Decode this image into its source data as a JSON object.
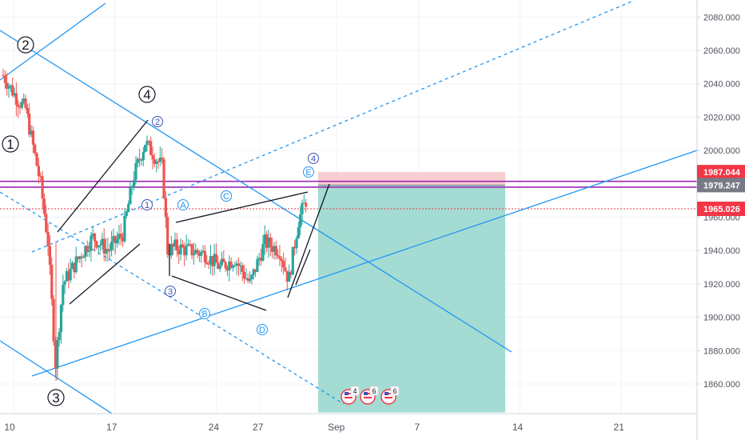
{
  "chart_data": {
    "type": "candlestick",
    "instrument_type": "price chart",
    "x_ticks": [
      "10",
      "17",
      "24",
      "27",
      "Sep",
      "7",
      "14",
      "21"
    ],
    "y_ticks": [
      "1860.000",
      "1880.000",
      "1900.000",
      "1920.000",
      "1940.000",
      "1960.000",
      "1980.000",
      "2000.000",
      "2020.000",
      "2040.000",
      "2060.000",
      "2080.000"
    ],
    "ylim": [
      1842,
      2088
    ],
    "price_tags": [
      {
        "label": "1987.044",
        "value": 1987.044,
        "color": "#f23645"
      },
      {
        "label": "1979.247",
        "value": 1979.247,
        "color": "#787b86"
      },
      {
        "label": "1965.026",
        "value": 1965.026,
        "color": "#f23645"
      }
    ],
    "horizontal_levels": [
      {
        "value": 1981.5,
        "color": "#9c27b0"
      },
      {
        "value": 1978.0,
        "color": "#9c27b0"
      },
      {
        "value": 1965.026,
        "color": "#f23645",
        "style": "dotted"
      }
    ],
    "position": {
      "type": "short",
      "stop": 1987.044,
      "entry": 1979.247,
      "target": 1843,
      "stop_color": "#f7c6c9",
      "target_color": "#9fd9d1"
    },
    "wave_labels_major": [
      "1",
      "2",
      "3",
      "4"
    ],
    "wave_labels_minor": [
      "1",
      "2",
      "3",
      "4"
    ],
    "wave_labels_abc": [
      "A",
      "B",
      "C",
      "D",
      "E"
    ],
    "event_flags": [
      "4",
      "6",
      "6"
    ],
    "colors": {
      "up": "#26a69a",
      "down": "#ef5350",
      "trendline": "#2196f3",
      "pattern": "#131722",
      "minor_label": "#3f51b5"
    }
  }
}
